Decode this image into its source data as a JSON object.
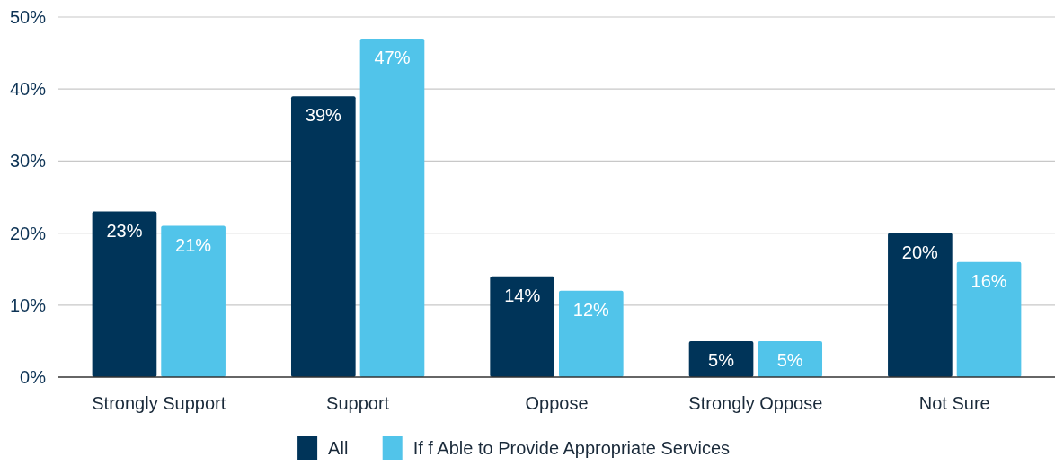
{
  "chart_data": {
    "type": "bar",
    "categories": [
      "Strongly Support",
      "Support",
      "Oppose",
      "Strongly Oppose",
      "Not Sure"
    ],
    "series": [
      {
        "name": "All",
        "color": "#003459",
        "values": [
          23,
          39,
          14,
          5,
          20
        ],
        "value_labels": [
          "23%",
          "39%",
          "14%",
          "5%",
          "20%"
        ]
      },
      {
        "name": "If f Able to Provide Appropriate Services",
        "color": "#51c4ea",
        "values": [
          21,
          47,
          12,
          5,
          16
        ],
        "value_labels": [
          "21%",
          "47%",
          "12%",
          "5%",
          "16%"
        ]
      }
    ],
    "ylim": [
      0,
      50
    ],
    "yticks": [
      {
        "value": 0,
        "label": "0%"
      },
      {
        "value": 10,
        "label": "10%"
      },
      {
        "value": 20,
        "label": "20%"
      },
      {
        "value": 30,
        "label": "30%"
      },
      {
        "value": 40,
        "label": "40%"
      },
      {
        "value": 50,
        "label": "50%"
      }
    ],
    "grid": "y",
    "legend": "bottom"
  }
}
